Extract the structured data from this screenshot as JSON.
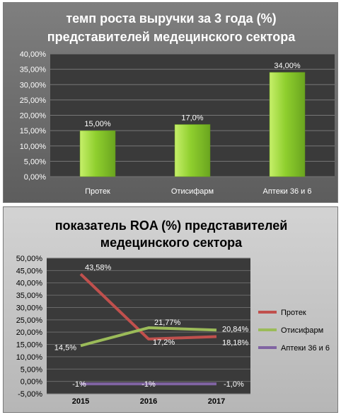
{
  "chart_data": [
    {
      "type": "bar",
      "title": [
        "темп роста выручки за 3 года (%)",
        "представителей медецинского сектора"
      ],
      "categories": [
        "Протек",
        "Отисифарм",
        "Аптеки 36 и 6"
      ],
      "values": [
        15.0,
        17.0,
        34.0
      ],
      "data_labels": [
        "15,00%",
        "17,0%",
        "34,00%"
      ],
      "ylim": [
        0,
        40
      ],
      "yticks": [
        0,
        5,
        10,
        15,
        20,
        25,
        30,
        35,
        40
      ],
      "ytick_labels": [
        "0,00%",
        "5,00%",
        "10,00%",
        "15,00%",
        "20,00%",
        "25,00%",
        "30,00%",
        "35,00%",
        "40,00%"
      ],
      "grid": true,
      "colors": {
        "bar": "#8fcf2e",
        "bar_light": "#c6ef6a",
        "plot_bg": "#3a3a3a",
        "grid": "#777777",
        "text": "#ffffff"
      }
    },
    {
      "type": "line",
      "title": [
        "показатель ROA (%) представителей",
        "медецинского сектора"
      ],
      "categories": [
        "2015",
        "2016",
        "2017"
      ],
      "series": [
        {
          "name": "Протек",
          "values": [
            43.58,
            17.2,
            18.18
          ],
          "labels": [
            "43,58%",
            "17,2%",
            "18,18%"
          ],
          "color": "#c0504d"
        },
        {
          "name": "Отисифарм",
          "values": [
            14.5,
            21.77,
            20.84
          ],
          "labels": [
            "14,5%",
            "21,77%",
            "20,84%"
          ],
          "color": "#9bbb59"
        },
        {
          "name": "Аптеки 36 и 6",
          "values": [
            -1.0,
            -1.0,
            -1.0
          ],
          "labels": [
            "-1%",
            "-1%",
            "-1,0%"
          ],
          "color": "#8064a2"
        }
      ],
      "ylim": [
        -5,
        50
      ],
      "yticks": [
        -5,
        0,
        5,
        10,
        15,
        20,
        25,
        30,
        35,
        40,
        45,
        50
      ],
      "ytick_labels": [
        "-5,00%",
        "0,00%",
        "5,00%",
        "10,00%",
        "15,00%",
        "20,00%",
        "25,00%",
        "30,00%",
        "35,00%",
        "40,00%",
        "45,00%",
        "50,00%"
      ],
      "grid": true,
      "legend": "right",
      "colors": {
        "plot_bg": "#3a3a3a",
        "grid": "#6a6a6a",
        "text": "#000000"
      }
    }
  ]
}
